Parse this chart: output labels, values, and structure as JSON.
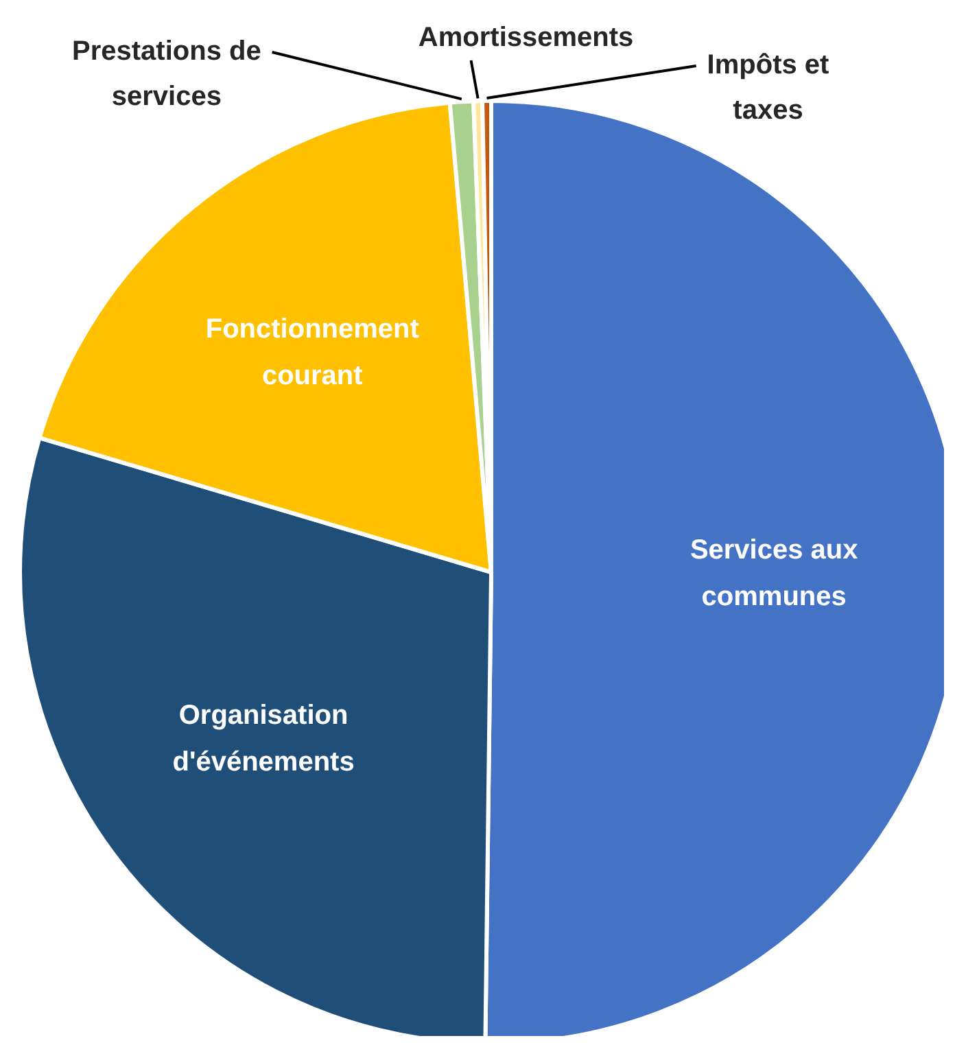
{
  "chart_data": {
    "type": "pie",
    "categories": [
      "Services aux communes",
      "Organisation d'événements",
      "Fonctionnement courant",
      "Prestations de services",
      "Amortissements",
      "Impôts et taxes"
    ],
    "values": [
      50.2,
      29.4,
      19.0,
      0.8,
      0.3,
      0.3
    ],
    "colors": [
      "#4472c4",
      "#1f4e79",
      "#ffc000",
      "#a9d18e",
      "#ffe699",
      "#c55a11"
    ],
    "legend": false
  }
}
